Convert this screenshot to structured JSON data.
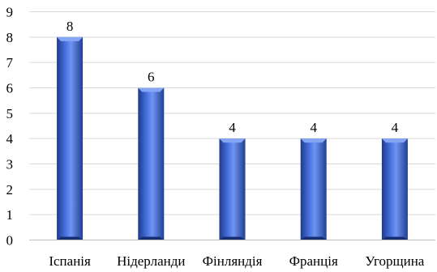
{
  "chart_data": {
    "type": "bar",
    "categories": [
      "Іспанія",
      "Нідерланди",
      "Фінляндія",
      "Франція",
      "Угорщина"
    ],
    "values": [
      8,
      6,
      4,
      4,
      4
    ],
    "data_labels": [
      "8",
      "6",
      "4",
      "4",
      "4"
    ],
    "y_ticks": [
      "0",
      "1",
      "2",
      "3",
      "4",
      "5",
      "6",
      "7",
      "8",
      "9"
    ],
    "ylim": [
      0,
      9
    ],
    "grid": true,
    "title": "",
    "xlabel": "",
    "ylabel": ""
  },
  "colors": {
    "bar_dark": "#1e3a8a",
    "bar_mid": "#3b63d6",
    "bar_light": "#6f94f0",
    "grid": "#d9d9d9",
    "axis": "#bfbfbf"
  }
}
